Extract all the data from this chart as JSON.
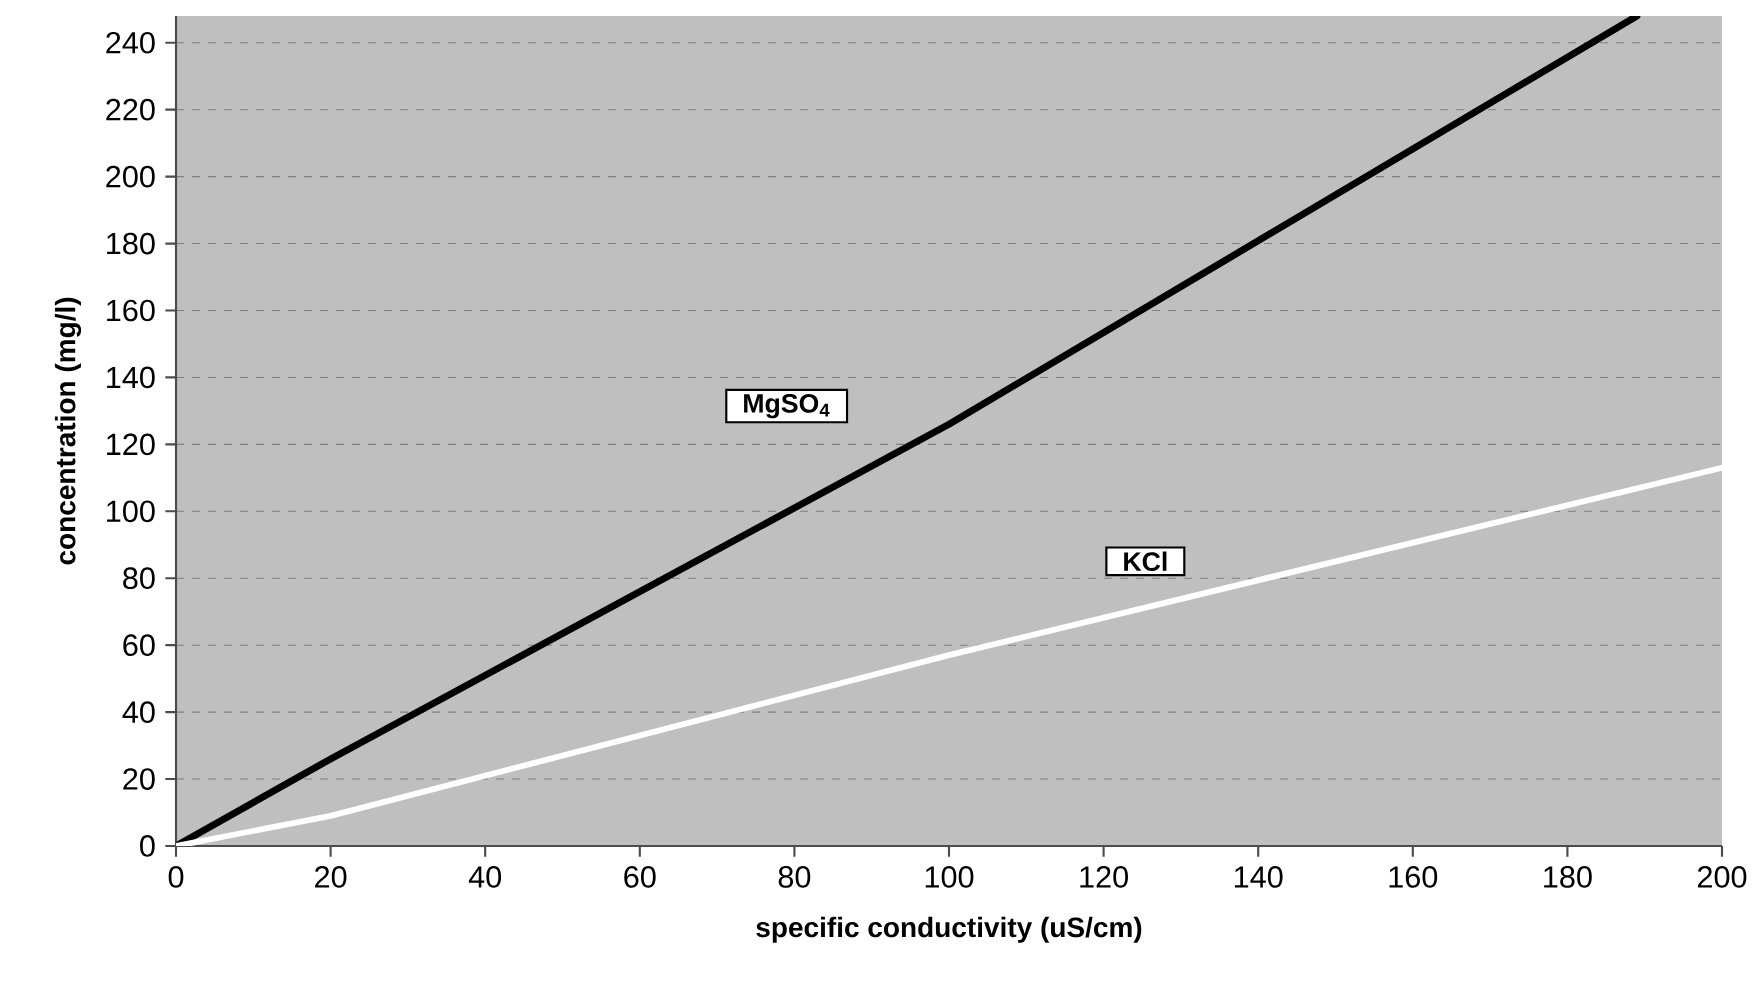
{
  "chart_data": {
    "type": "line",
    "xlabel": "specific conductivity (uS/cm)",
    "ylabel": "concentration (mg/l)",
    "xlim": [
      0,
      200
    ],
    "xticks": [
      0,
      20,
      40,
      60,
      80,
      100,
      120,
      140,
      160,
      180,
      200
    ],
    "ylim": [
      0,
      248
    ],
    "yticks": [
      0,
      20,
      40,
      60,
      80,
      100,
      120,
      140,
      160,
      180,
      200,
      220,
      240
    ],
    "grid": "y",
    "line_style": "solid",
    "marker": "none",
    "series": [
      {
        "name": "MgSO$_{4}$",
        "color": "#000000",
        "x": [
          0,
          20,
          100,
          189
        ],
        "values": [
          0,
          26,
          126,
          248
        ]
      },
      {
        "name": "KCl",
        "color": "#ffffff",
        "x": [
          0,
          20,
          100,
          200
        ],
        "values": [
          0,
          9,
          57,
          113
        ]
      }
    ]
  }
}
